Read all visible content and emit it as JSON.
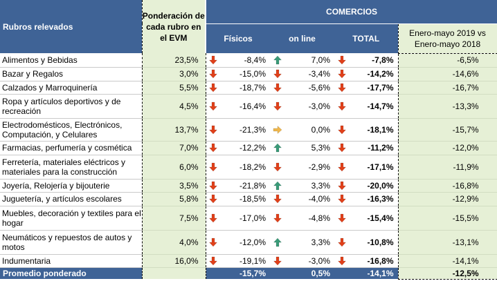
{
  "header": {
    "rubros": "Rubros relevados",
    "ponderacion": "Ponderación de cada rubro en el EVM",
    "comercios": "COMERCIOS",
    "fisicos": "Físicos",
    "online": "on line",
    "total": "TOTAL",
    "enero_mayo": "Enero-mayo 2019 vs Enero-mayo 2018"
  },
  "colors": {
    "down": "#e0401a",
    "up": "#3a9a78",
    "flat": "#f0b74c",
    "header_bg": "#3f6396",
    "light_green": "#e6f0d6"
  },
  "rows": [
    {
      "rubro": "Alimentos y Bebidas",
      "pond": "23,5%",
      "fis_icon": "down",
      "fisicos": "-8,4%",
      "on_icon": "up",
      "online": "7,0%",
      "tot_icon": "down",
      "total": "-7,8%",
      "ene": "-6,5%"
    },
    {
      "rubro": "Bazar y Regalos",
      "pond": "3,0%",
      "fis_icon": "down",
      "fisicos": "-15,0%",
      "on_icon": "down",
      "online": "-3,4%",
      "tot_icon": "down",
      "total": "-14,2%",
      "ene": "-14,6%"
    },
    {
      "rubro": "Calzados y Marroquinería",
      "pond": "5,5%",
      "fis_icon": "down",
      "fisicos": "-18,7%",
      "on_icon": "down",
      "online": "-5,6%",
      "tot_icon": "down",
      "total": "-17,7%",
      "ene": "-16,7%"
    },
    {
      "rubro": "Ropa y artículos deportivos y de recreación",
      "pond": "4,5%",
      "fis_icon": "down",
      "fisicos": "-16,4%",
      "on_icon": "down",
      "online": "-3,0%",
      "tot_icon": "down",
      "total": "-14,7%",
      "ene": "-13,3%"
    },
    {
      "rubro": "Electrodomésticos, Electrónicos, Computación, y Celulares",
      "pond": "13,7%",
      "fis_icon": "down",
      "fisicos": "-21,3%",
      "on_icon": "flat",
      "online": "0,0%",
      "tot_icon": "down",
      "total": "-18,1%",
      "ene": "-15,7%"
    },
    {
      "rubro": "Farmacias, perfumería y cosmética",
      "pond": "7,0%",
      "fis_icon": "down",
      "fisicos": "-12,2%",
      "on_icon": "up",
      "online": "5,3%",
      "tot_icon": "down",
      "total": "-11,2%",
      "ene": "-12,0%"
    },
    {
      "rubro": "Ferretería, materiales eléctricos y materiales para la construcción",
      "pond": "6,0%",
      "fis_icon": "down",
      "fisicos": "-18,2%",
      "on_icon": "down",
      "online": "-2,9%",
      "tot_icon": "down",
      "total": "-17,1%",
      "ene": "-11,9%"
    },
    {
      "rubro": "Joyería, Relojería y bijouterie",
      "pond": "3,5%",
      "fis_icon": "down",
      "fisicos": "-21,8%",
      "on_icon": "up",
      "online": "3,3%",
      "tot_icon": "down",
      "total": "-20,0%",
      "ene": "-16,8%"
    },
    {
      "rubro": "Juguetería, y artículos escolares",
      "pond": "5,8%",
      "fis_icon": "down",
      "fisicos": "-18,5%",
      "on_icon": "down",
      "online": "-4,0%",
      "tot_icon": "down",
      "total": "-16,3%",
      "ene": "-12,9%"
    },
    {
      "rubro": "Muebles, decoración y textiles para el hogar",
      "pond": "7,5%",
      "fis_icon": "down",
      "fisicos": "-17,0%",
      "on_icon": "down",
      "online": "-4,8%",
      "tot_icon": "down",
      "total": "-15,4%",
      "ene": "-15,5%"
    },
    {
      "rubro": "Neumáticos y repuestos de autos y motos",
      "pond": "4,0%",
      "fis_icon": "down",
      "fisicos": "-12,0%",
      "on_icon": "up",
      "online": "3,3%",
      "tot_icon": "down",
      "total": "-10,8%",
      "ene": "-13,1%"
    },
    {
      "rubro": "Indumentaria",
      "pond": "16,0%",
      "fis_icon": "down",
      "fisicos": "-19,1%",
      "on_icon": "down",
      "online": "-3,0%",
      "tot_icon": "down",
      "total": "-16,8%",
      "ene": "-14,1%"
    }
  ],
  "footer": {
    "label": "Promedio ponderado",
    "fisicos": "-15,7%",
    "online": "0,5%",
    "total": "-14,1%",
    "ene": "-12,5%"
  }
}
